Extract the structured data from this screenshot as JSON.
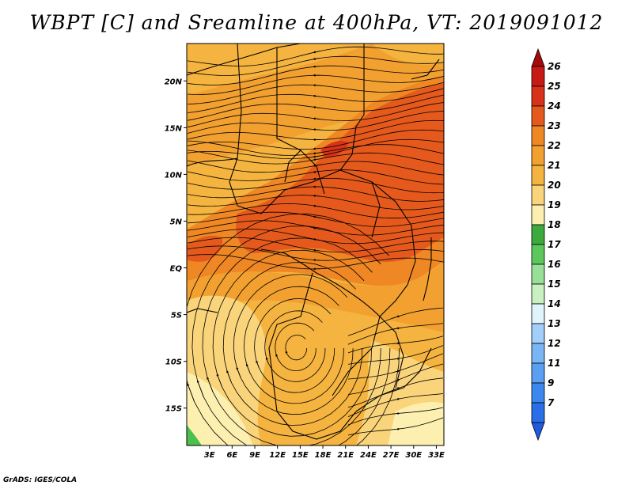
{
  "title": "WBPT [C] and Sreamline at 400hPa, VT: 2019091012",
  "footer": "GrADS: IGES/COLA",
  "colors": {
    "c20_21": "#f5b340",
    "c21_22": "#f2a030",
    "c22_23": "#ee8724",
    "c23_24": "#e55a1c",
    "c19_20": "#fad47a",
    "c18_19": "#fcefb0",
    "green": "#4cc04c"
  },
  "chart_data": {
    "type": "map",
    "variable": "Wet-bulb potential temperature [C] with streamlines at 400hPa",
    "valid_time": "2019091012",
    "lon_ticks": [
      "3E",
      "6E",
      "9E",
      "12E",
      "15E",
      "18E",
      "21E",
      "24E",
      "27E",
      "30E",
      "33E"
    ],
    "lat_ticks": [
      "20N",
      "15N",
      "10N",
      "5N",
      "EQ",
      "5S",
      "10S",
      "15S"
    ],
    "lon_range": [
      0,
      34
    ],
    "lat_range": [
      -19,
      24
    ],
    "colorbar": {
      "labels": [
        "7",
        "9",
        "11",
        "12",
        "13",
        "14",
        "15",
        "16",
        "17",
        "18",
        "19",
        "20",
        "21",
        "22",
        "23",
        "24",
        "25",
        "26"
      ],
      "colors": [
        "#1f5ae0",
        "#2a6fe8",
        "#3c87ee",
        "#5a9ff2",
        "#7ab6f6",
        "#a3cef9",
        "#e0f4fb",
        "#c8f0c0",
        "#98e098",
        "#5cc85c",
        "#3caa3c",
        "#fcefb0",
        "#fad47a",
        "#f5b340",
        "#f2a030",
        "#ee8724",
        "#e55a1c",
        "#d83218",
        "#c81a14",
        "#a50a0a"
      ]
    }
  }
}
